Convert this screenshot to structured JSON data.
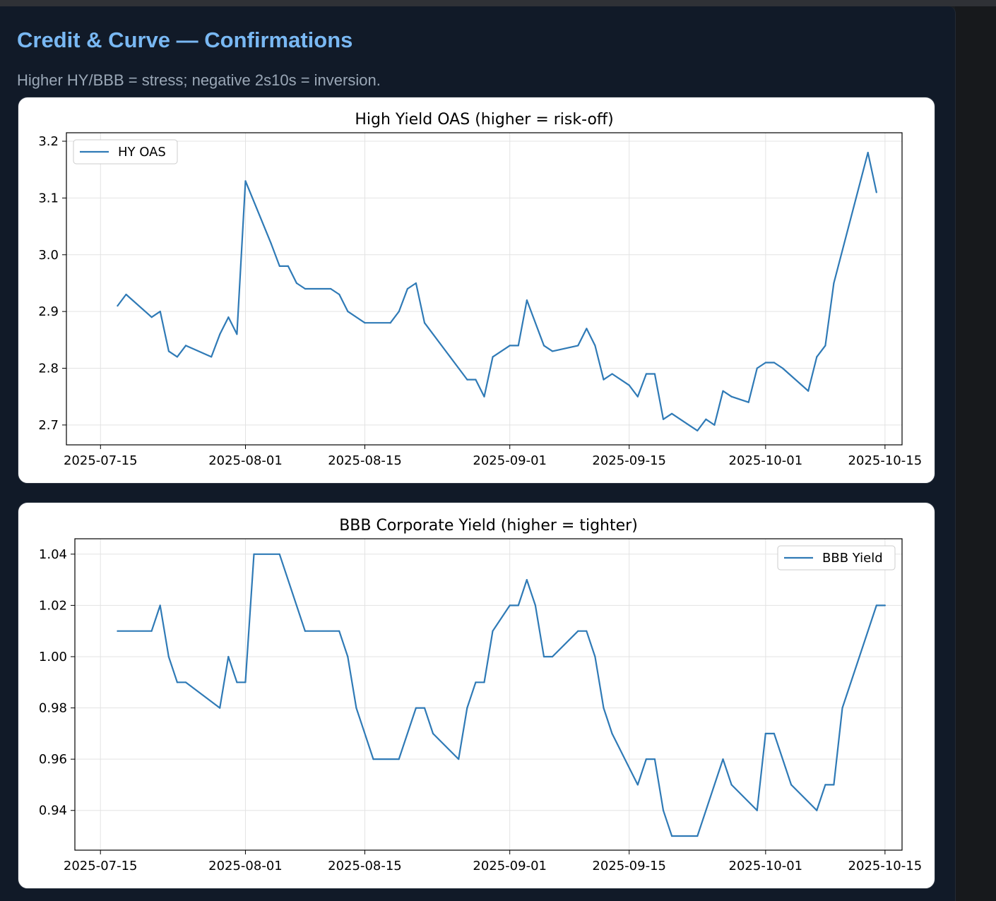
{
  "header": {
    "title": "Credit & Curve — Confirmations",
    "subtitle": "Higher HY/BBB = stress; negative 2s10s = inversion."
  },
  "colors": {
    "accent": "#79b8f3",
    "line": "#2f7ab6",
    "background": "#111a28"
  },
  "chart_data": [
    {
      "type": "line",
      "title": "High Yield OAS (higher = risk-off)",
      "xlabel": "",
      "ylabel": "",
      "xlim": [
        "2025-07-11",
        "2025-10-17"
      ],
      "ylim": [
        2.665,
        3.215
      ],
      "xticks": [
        "2025-07-15",
        "2025-08-01",
        "2025-08-15",
        "2025-09-01",
        "2025-09-15",
        "2025-10-01",
        "2025-10-15"
      ],
      "yticks": [
        "2.7",
        "2.8",
        "2.9",
        "3.0",
        "3.1",
        "3.2"
      ],
      "grid": true,
      "legend_position": "top-left",
      "series": [
        {
          "name": "HY OAS",
          "points": [
            [
              "2025-07-17",
              2.91
            ],
            [
              "2025-07-18",
              2.93
            ],
            [
              "2025-07-21",
              2.89
            ],
            [
              "2025-07-22",
              2.9
            ],
            [
              "2025-07-23",
              2.83
            ],
            [
              "2025-07-24",
              2.82
            ],
            [
              "2025-07-25",
              2.84
            ],
            [
              "2025-07-28",
              2.82
            ],
            [
              "2025-07-29",
              2.86
            ],
            [
              "2025-07-30",
              2.89
            ],
            [
              "2025-07-31",
              2.86
            ],
            [
              "2025-08-01",
              3.13
            ],
            [
              "2025-08-04",
              3.02
            ],
            [
              "2025-08-05",
              2.98
            ],
            [
              "2025-08-06",
              2.98
            ],
            [
              "2025-08-07",
              2.95
            ],
            [
              "2025-08-08",
              2.94
            ],
            [
              "2025-08-11",
              2.94
            ],
            [
              "2025-08-12",
              2.93
            ],
            [
              "2025-08-13",
              2.9
            ],
            [
              "2025-08-15",
              2.88
            ],
            [
              "2025-08-18",
              2.88
            ],
            [
              "2025-08-19",
              2.9
            ],
            [
              "2025-08-20",
              2.94
            ],
            [
              "2025-08-21",
              2.95
            ],
            [
              "2025-08-22",
              2.88
            ],
            [
              "2025-08-25",
              2.82
            ],
            [
              "2025-08-26",
              2.8
            ],
            [
              "2025-08-27",
              2.78
            ],
            [
              "2025-08-28",
              2.78
            ],
            [
              "2025-08-29",
              2.75
            ],
            [
              "2025-08-30",
              2.82
            ],
            [
              "2025-09-01",
              2.84
            ],
            [
              "2025-09-02",
              2.84
            ],
            [
              "2025-09-03",
              2.92
            ],
            [
              "2025-09-05",
              2.84
            ],
            [
              "2025-09-06",
              2.83
            ],
            [
              "2025-09-09",
              2.84
            ],
            [
              "2025-09-10",
              2.87
            ],
            [
              "2025-09-11",
              2.84
            ],
            [
              "2025-09-12",
              2.78
            ],
            [
              "2025-09-13",
              2.79
            ],
            [
              "2025-09-15",
              2.77
            ],
            [
              "2025-09-16",
              2.75
            ],
            [
              "2025-09-17",
              2.79
            ],
            [
              "2025-09-18",
              2.79
            ],
            [
              "2025-09-19",
              2.71
            ],
            [
              "2025-09-20",
              2.72
            ],
            [
              "2025-09-22",
              2.7
            ],
            [
              "2025-09-23",
              2.69
            ],
            [
              "2025-09-24",
              2.71
            ],
            [
              "2025-09-25",
              2.7
            ],
            [
              "2025-09-26",
              2.76
            ],
            [
              "2025-09-27",
              2.75
            ],
            [
              "2025-09-29",
              2.74
            ],
            [
              "2025-09-30",
              2.8
            ],
            [
              "2025-10-01",
              2.81
            ],
            [
              "2025-10-02",
              2.81
            ],
            [
              "2025-10-03",
              2.8
            ],
            [
              "2025-10-06",
              2.76
            ],
            [
              "2025-10-07",
              2.82
            ],
            [
              "2025-10-08",
              2.84
            ],
            [
              "2025-10-09",
              2.95
            ],
            [
              "2025-10-13",
              3.18
            ],
            [
              "2025-10-14",
              3.11
            ]
          ]
        }
      ]
    },
    {
      "type": "line",
      "title": "BBB Corporate Yield (higher = tighter)",
      "xlabel": "",
      "ylabel": "",
      "xlim": [
        "2025-07-12",
        "2025-10-17"
      ],
      "ylim": [
        0.9245,
        1.046
      ],
      "xticks": [
        "2025-07-15",
        "2025-08-01",
        "2025-08-15",
        "2025-09-01",
        "2025-09-15",
        "2025-10-01",
        "2025-10-15"
      ],
      "yticks": [
        "0.94",
        "0.96",
        "0.98",
        "1.00",
        "1.02",
        "1.04"
      ],
      "grid": true,
      "legend_position": "top-right",
      "series": [
        {
          "name": "BBB Yield",
          "points": [
            [
              "2025-07-17",
              1.01
            ],
            [
              "2025-07-21",
              1.01
            ],
            [
              "2025-07-22",
              1.02
            ],
            [
              "2025-07-23",
              1.0
            ],
            [
              "2025-07-24",
              0.99
            ],
            [
              "2025-07-25",
              0.99
            ],
            [
              "2025-07-29",
              0.98
            ],
            [
              "2025-07-30",
              1.0
            ],
            [
              "2025-07-31",
              0.99
            ],
            [
              "2025-08-01",
              0.99
            ],
            [
              "2025-08-02",
              1.04
            ],
            [
              "2025-08-05",
              1.04
            ],
            [
              "2025-08-08",
              1.01
            ],
            [
              "2025-08-12",
              1.01
            ],
            [
              "2025-08-13",
              1.0
            ],
            [
              "2025-08-14",
              0.98
            ],
            [
              "2025-08-16",
              0.96
            ],
            [
              "2025-08-19",
              0.96
            ],
            [
              "2025-08-21",
              0.98
            ],
            [
              "2025-08-22",
              0.98
            ],
            [
              "2025-08-23",
              0.97
            ],
            [
              "2025-08-26",
              0.96
            ],
            [
              "2025-08-27",
              0.98
            ],
            [
              "2025-08-28",
              0.99
            ],
            [
              "2025-08-29",
              0.99
            ],
            [
              "2025-08-30",
              1.01
            ],
            [
              "2025-09-01",
              1.02
            ],
            [
              "2025-09-02",
              1.02
            ],
            [
              "2025-09-03",
              1.03
            ],
            [
              "2025-09-04",
              1.02
            ],
            [
              "2025-09-05",
              1.0
            ],
            [
              "2025-09-06",
              1.0
            ],
            [
              "2025-09-09",
              1.01
            ],
            [
              "2025-09-10",
              1.01
            ],
            [
              "2025-09-11",
              1.0
            ],
            [
              "2025-09-12",
              0.98
            ],
            [
              "2025-09-13",
              0.97
            ],
            [
              "2025-09-16",
              0.95
            ],
            [
              "2025-09-17",
              0.96
            ],
            [
              "2025-09-18",
              0.96
            ],
            [
              "2025-09-19",
              0.94
            ],
            [
              "2025-09-20",
              0.93
            ],
            [
              "2025-09-23",
              0.93
            ],
            [
              "2025-09-26",
              0.96
            ],
            [
              "2025-09-27",
              0.95
            ],
            [
              "2025-09-30",
              0.94
            ],
            [
              "2025-10-01",
              0.97
            ],
            [
              "2025-10-02",
              0.97
            ],
            [
              "2025-10-04",
              0.95
            ],
            [
              "2025-10-07",
              0.94
            ],
            [
              "2025-10-08",
              0.95
            ],
            [
              "2025-10-09",
              0.95
            ],
            [
              "2025-10-10",
              0.98
            ],
            [
              "2025-10-14",
              1.02
            ],
            [
              "2025-10-15",
              1.02
            ]
          ]
        }
      ]
    }
  ]
}
